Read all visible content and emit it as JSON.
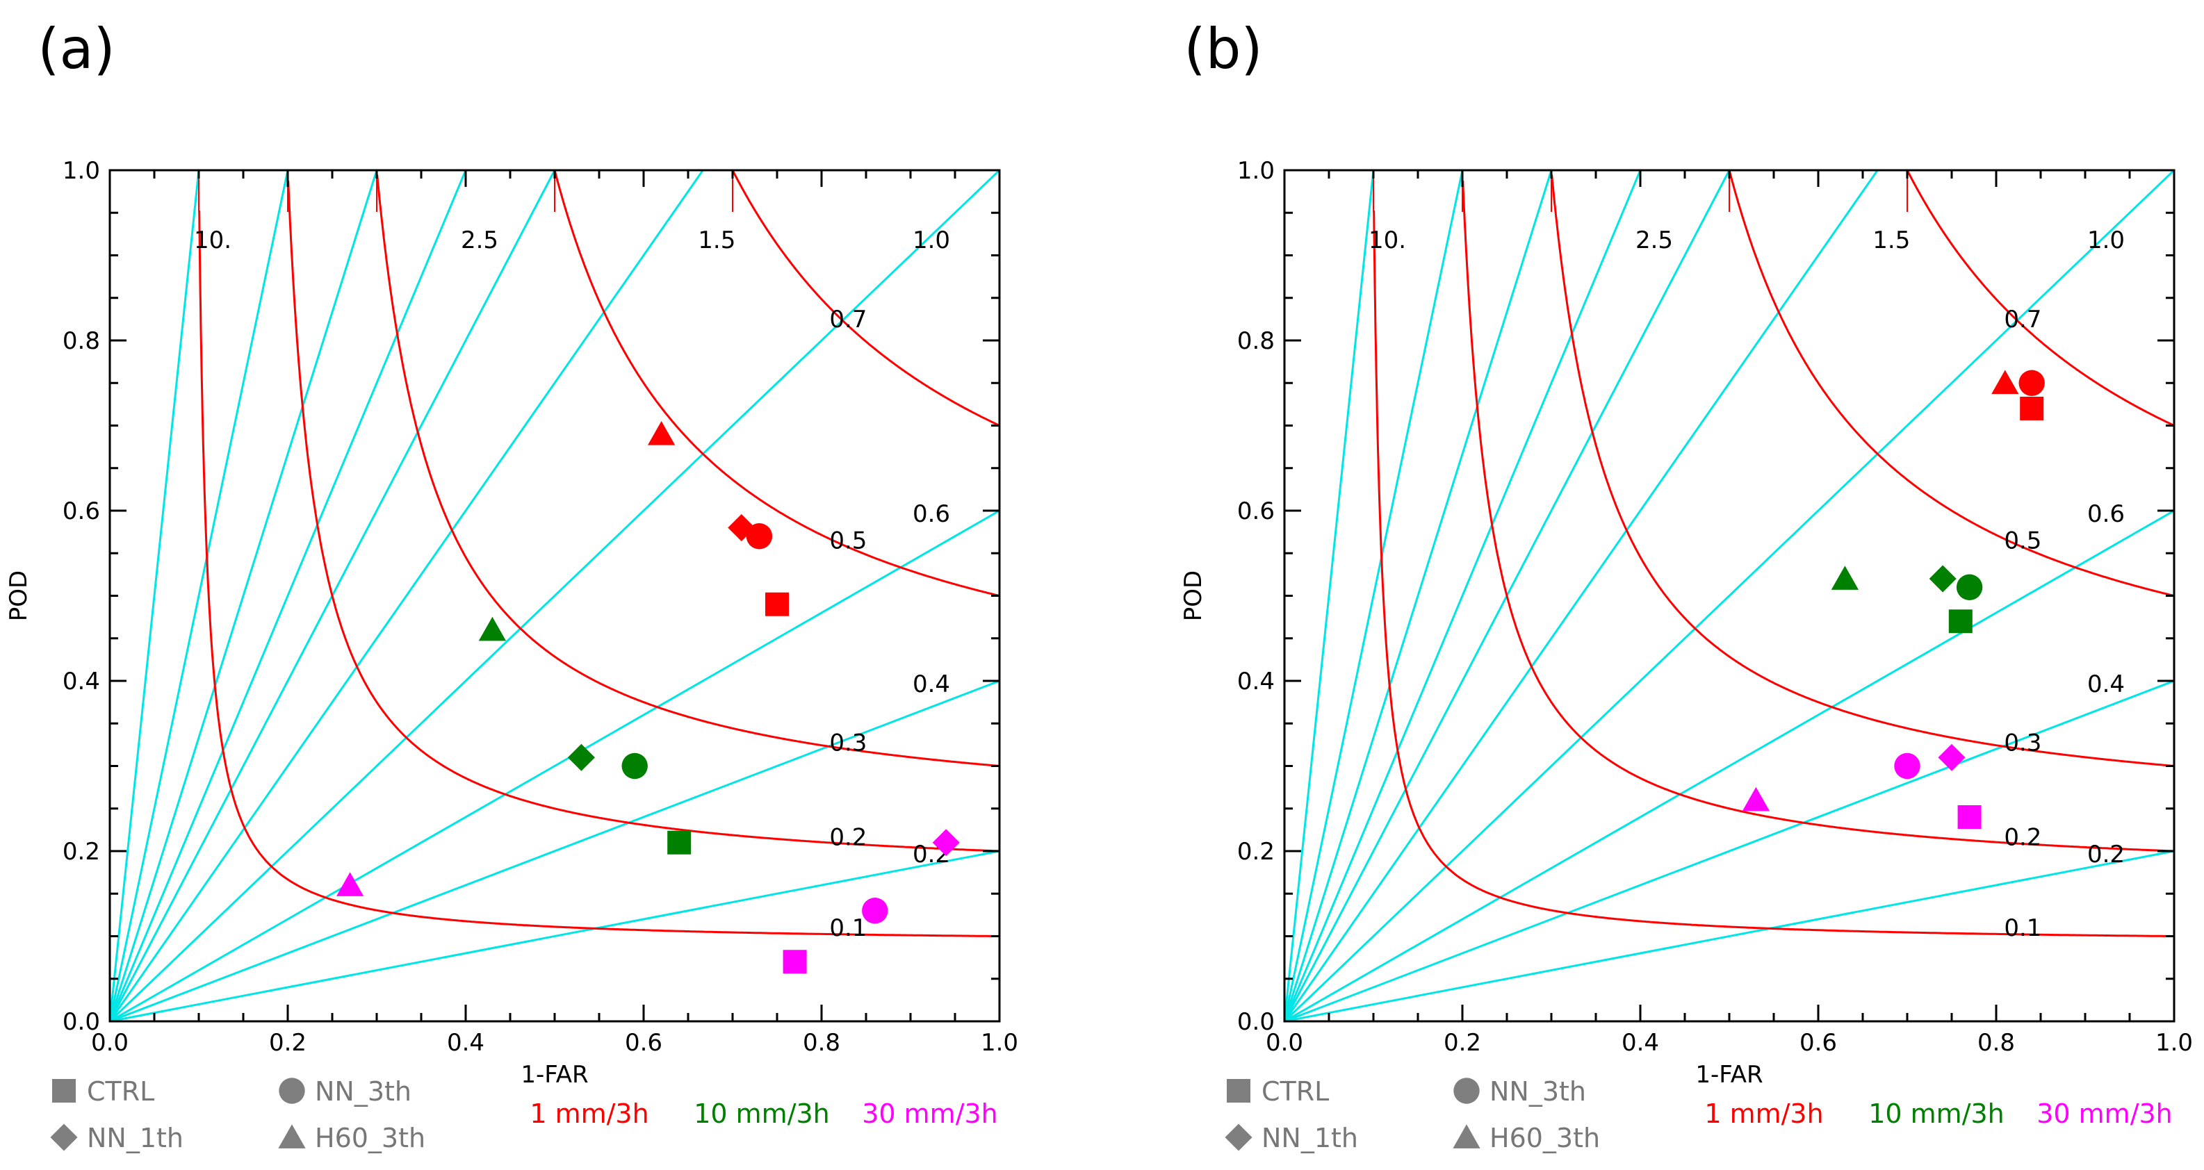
{
  "chart_data": [
    {
      "type": "scatter",
      "subtype": "performance-diagram",
      "panel_label": "(a)",
      "xlabel": "1-FAR",
      "ylabel": "POD",
      "xlim": [
        0,
        1
      ],
      "ylim": [
        0,
        1
      ],
      "x_ticks": [
        "0.0",
        "0.2",
        "0.4",
        "0.6",
        "0.8",
        "1.0"
      ],
      "y_ticks": [
        "0.0",
        "0.2",
        "0.4",
        "0.6",
        "0.8",
        "1.0"
      ],
      "bias_lines": [
        {
          "value": 10,
          "label": "10."
        },
        {
          "value": 5,
          "label": ""
        },
        {
          "value": 3.333,
          "label": ""
        },
        {
          "value": 2.5,
          "label": "2.5"
        },
        {
          "value": 2,
          "label": ""
        },
        {
          "value": 1.5,
          "label": "1.5"
        },
        {
          "value": 1.0,
          "label": "1.0"
        },
        {
          "value": 0.6,
          "label": "0.6"
        },
        {
          "value": 0.4,
          "label": "0.4"
        },
        {
          "value": 0.2,
          "label": "0.2"
        }
      ],
      "csi_curves": [
        {
          "value": 0.1,
          "label": "0.1"
        },
        {
          "value": 0.2,
          "label": "0.2"
        },
        {
          "value": 0.3,
          "label": "0.3"
        },
        {
          "value": 0.5,
          "label": "0.5"
        },
        {
          "value": 0.7,
          "label": "0.7"
        }
      ],
      "series": [
        {
          "name": "CTRL",
          "marker": "square",
          "points": [
            {
              "threshold": "1 mm/3h",
              "x": 0.75,
              "y": 0.49
            },
            {
              "threshold": "10 mm/3h",
              "x": 0.64,
              "y": 0.21
            },
            {
              "threshold": "30 mm/3h",
              "x": 0.77,
              "y": 0.07
            }
          ]
        },
        {
          "name": "NN_3th",
          "marker": "circle",
          "points": [
            {
              "threshold": "1 mm/3h",
              "x": 0.73,
              "y": 0.57
            },
            {
              "threshold": "10 mm/3h",
              "x": 0.59,
              "y": 0.3
            },
            {
              "threshold": "30 mm/3h",
              "x": 0.86,
              "y": 0.13
            }
          ]
        },
        {
          "name": "NN_1th",
          "marker": "diamond",
          "points": [
            {
              "threshold": "1 mm/3h",
              "x": 0.71,
              "y": 0.58
            },
            {
              "threshold": "10 mm/3h",
              "x": 0.53,
              "y": 0.31
            },
            {
              "threshold": "30 mm/3h",
              "x": 0.94,
              "y": 0.21
            }
          ]
        },
        {
          "name": "H60_3th",
          "marker": "triangle",
          "points": [
            {
              "threshold": "1 mm/3h",
              "x": 0.62,
              "y": 0.69
            },
            {
              "threshold": "10 mm/3h",
              "x": 0.43,
              "y": 0.46
            },
            {
              "threshold": "30 mm/3h",
              "x": 0.27,
              "y": 0.16
            }
          ]
        }
      ]
    },
    {
      "type": "scatter",
      "subtype": "performance-diagram",
      "panel_label": "(b)",
      "xlabel": "1-FAR",
      "ylabel": "POD",
      "xlim": [
        0,
        1
      ],
      "ylim": [
        0,
        1
      ],
      "x_ticks": [
        "0.0",
        "0.2",
        "0.4",
        "0.6",
        "0.8",
        "1.0"
      ],
      "y_ticks": [
        "0.0",
        "0.2",
        "0.4",
        "0.6",
        "0.8",
        "1.0"
      ],
      "bias_lines": [
        {
          "value": 10,
          "label": "10."
        },
        {
          "value": 5,
          "label": ""
        },
        {
          "value": 3.333,
          "label": ""
        },
        {
          "value": 2.5,
          "label": "2.5"
        },
        {
          "value": 2,
          "label": ""
        },
        {
          "value": 1.5,
          "label": "1.5"
        },
        {
          "value": 1.0,
          "label": "1.0"
        },
        {
          "value": 0.6,
          "label": "0.6"
        },
        {
          "value": 0.4,
          "label": "0.4"
        },
        {
          "value": 0.2,
          "label": "0.2"
        }
      ],
      "csi_curves": [
        {
          "value": 0.1,
          "label": "0.1"
        },
        {
          "value": 0.2,
          "label": "0.2"
        },
        {
          "value": 0.3,
          "label": "0.3"
        },
        {
          "value": 0.5,
          "label": "0.5"
        },
        {
          "value": 0.7,
          "label": "0.7"
        }
      ],
      "series": [
        {
          "name": "CTRL",
          "marker": "square",
          "points": [
            {
              "threshold": "1 mm/3h",
              "x": 0.84,
              "y": 0.72
            },
            {
              "threshold": "10 mm/3h",
              "x": 0.76,
              "y": 0.47
            },
            {
              "threshold": "30 mm/3h",
              "x": 0.77,
              "y": 0.24
            }
          ]
        },
        {
          "name": "NN_3th",
          "marker": "circle",
          "points": [
            {
              "threshold": "1 mm/3h",
              "x": 0.84,
              "y": 0.75
            },
            {
              "threshold": "10 mm/3h",
              "x": 0.77,
              "y": 0.51
            },
            {
              "threshold": "30 mm/3h",
              "x": 0.7,
              "y": 0.3
            }
          ]
        },
        {
          "name": "NN_1th",
          "marker": "diamond",
          "points": [
            {
              "threshold": "10 mm/3h",
              "x": 0.74,
              "y": 0.52
            },
            {
              "threshold": "30 mm/3h",
              "x": 0.75,
              "y": 0.31
            }
          ]
        },
        {
          "name": "H60_3th",
          "marker": "triangle",
          "points": [
            {
              "threshold": "1 mm/3h",
              "x": 0.81,
              "y": 0.75
            },
            {
              "threshold": "10 mm/3h",
              "x": 0.63,
              "y": 0.52
            },
            {
              "threshold": "30 mm/3h",
              "x": 0.53,
              "y": 0.26
            }
          ]
        }
      ]
    }
  ],
  "legend": {
    "markers": [
      {
        "name": "CTRL",
        "marker": "square"
      },
      {
        "name": "NN_3th",
        "marker": "circle"
      },
      {
        "name": "NN_1th",
        "marker": "diamond"
      },
      {
        "name": "H60_3th",
        "marker": "triangle"
      }
    ],
    "thresholds": [
      {
        "label": "1 mm/3h",
        "color": "#ff0000"
      },
      {
        "label": "10 mm/3h",
        "color": "#008000"
      },
      {
        "label": "30 mm/3h",
        "color": "#ff00ff"
      }
    ]
  },
  "colors": {
    "bias_line": "#00e5e5",
    "csi_curve": "#ff0000",
    "legend_marker": "#7f7f7f"
  }
}
